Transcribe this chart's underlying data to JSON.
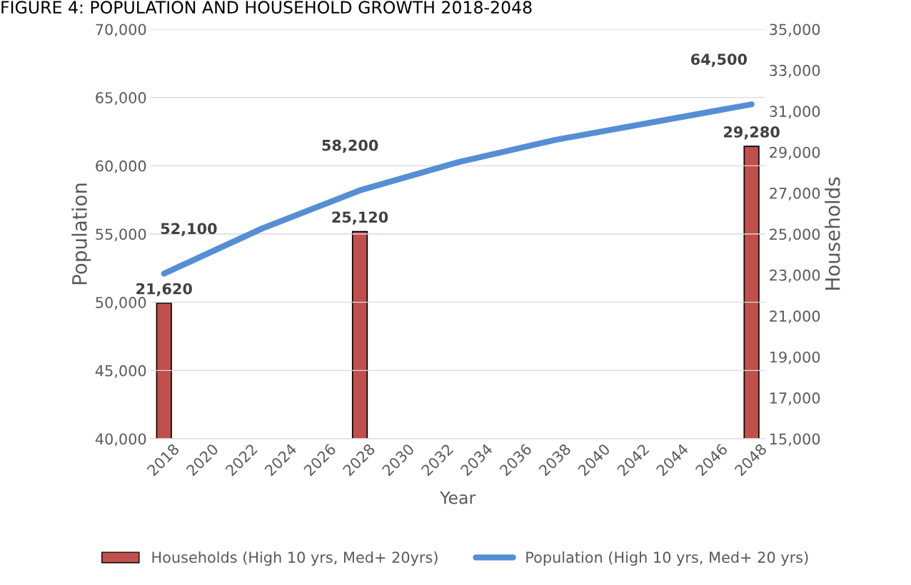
{
  "chart_data": {
    "type": "bar",
    "title": "FIGURE 4: POPULATION AND HOUSEHOLD GROWTH 2018-2048",
    "xlabel": "Year",
    "ylabel": "Population",
    "y2label": "Households",
    "xlim": [
      2017.3,
      2048.7
    ],
    "xticks": [
      2018,
      2020,
      2022,
      2024,
      2026,
      2028,
      2030,
      2032,
      2034,
      2036,
      2038,
      2040,
      2042,
      2044,
      2046,
      2048
    ],
    "ylim": [
      40000,
      70000
    ],
    "yticks": [
      {
        "value": 40000,
        "label": "40,000"
      },
      {
        "value": 45000,
        "label": "45,000"
      },
      {
        "value": 50000,
        "label": "50,000"
      },
      {
        "value": 55000,
        "label": "55,000"
      },
      {
        "value": 60000,
        "label": "60,000"
      },
      {
        "value": 65000,
        "label": "65,000"
      },
      {
        "value": 70000,
        "label": "70,000"
      }
    ],
    "y2lim": [
      15000,
      35000
    ],
    "y2ticks": [
      {
        "value": 15000,
        "label": "15,000"
      },
      {
        "value": 17000,
        "label": "17,000"
      },
      {
        "value": 19000,
        "label": "19,000"
      },
      {
        "value": 21000,
        "label": "21,000"
      },
      {
        "value": 23000,
        "label": "23,000"
      },
      {
        "value": 25000,
        "label": "25,000"
      },
      {
        "value": 27000,
        "label": "27,000"
      },
      {
        "value": 29000,
        "label": "29,000"
      },
      {
        "value": 31000,
        "label": "31,000"
      },
      {
        "value": 33000,
        "label": "33,000"
      },
      {
        "value": 35000,
        "label": "35,000"
      }
    ],
    "grid": "y",
    "legend": "bottom",
    "series": [
      {
        "name": "Households (High 10 yrs, Med+ 20yrs)",
        "axis": "y2",
        "color": "#c0504d",
        "x": [
          2018,
          2028,
          2048
        ],
        "values": [
          21620,
          25120,
          29280
        ],
        "value_labels": [
          "21,620",
          "25,120",
          "29,280"
        ]
      },
      {
        "name": "Population (High 10 yrs, Med+ 20 yrs)",
        "type": "line",
        "color": "#558ed5",
        "x": [
          2018,
          2023,
          2028,
          2033,
          2038,
          2043,
          2048
        ],
        "values": [
          52100,
          55400,
          58200,
          60250,
          61900,
          63200,
          64500
        ],
        "value_labels": [
          "52,100",
          null,
          "58,200",
          null,
          null,
          null,
          "64,500"
        ]
      }
    ]
  }
}
